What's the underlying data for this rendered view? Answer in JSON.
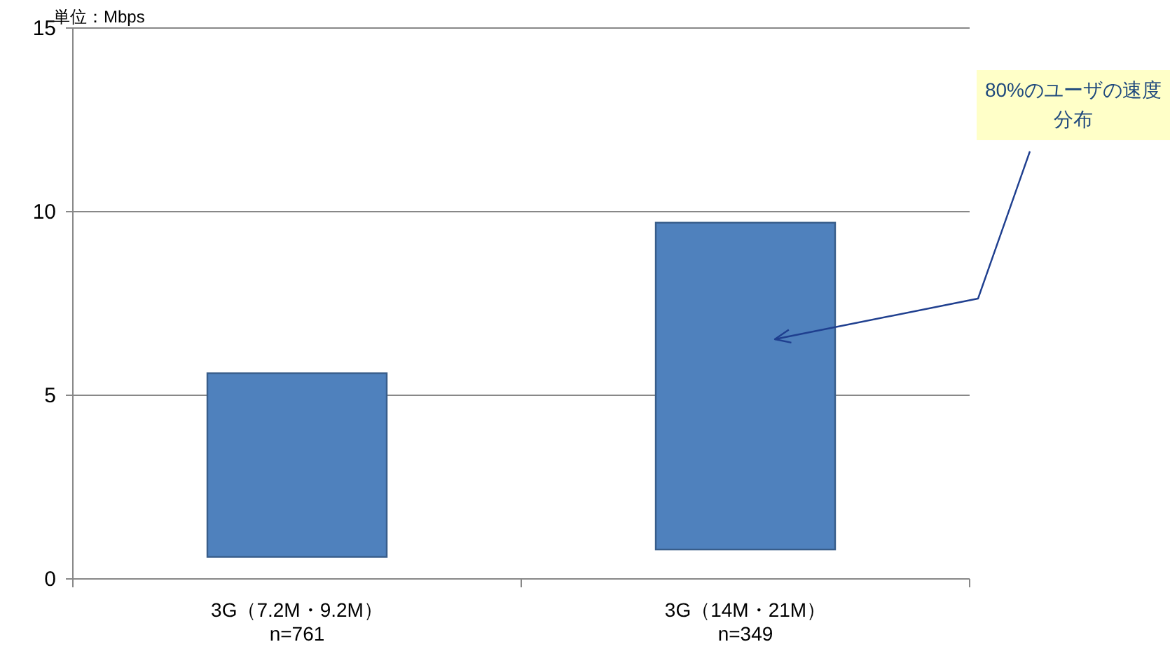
{
  "chart_data": {
    "type": "bar",
    "ylabel": "単位：Mbps",
    "categories": [
      "3G（7.2M・9.2M）\nn=761",
      "3G（14M・21M）\nn=349"
    ],
    "series": [
      {
        "color": "#4f81bd",
        "values": [
          5.0,
          8.9
        ],
        "base": [
          0.6,
          0.8
        ]
      }
    ],
    "ylim": [
      0,
      15
    ],
    "yticks": [
      0,
      5,
      10,
      15
    ],
    "grid": "y",
    "annotations": [
      "80%のユーザの速度分布"
    ]
  }
}
